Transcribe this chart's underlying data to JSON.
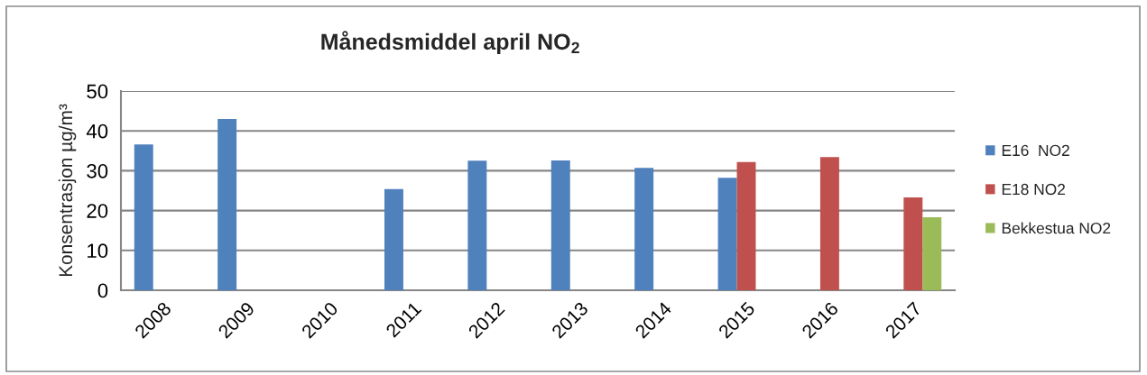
{
  "chart_data": {
    "type": "bar",
    "title": "Månedsmiddel april NO$_{2}$",
    "ylabel": "Konsentrasjon µg/m³",
    "categories": [
      "2008",
      "2009",
      "2010",
      "2011",
      "2012",
      "2013",
      "2014",
      "2015",
      "2016",
      "2017"
    ],
    "series": [
      {
        "name": "E16  NO2",
        "color": "#4f81bd",
        "values": [
          36.6,
          43.0,
          null,
          25.4,
          32.5,
          32.6,
          30.7,
          28.2,
          null,
          null
        ]
      },
      {
        "name": "E18 NO2",
        "color": "#c0504d",
        "values": [
          null,
          null,
          null,
          null,
          null,
          null,
          null,
          32.2,
          33.4,
          23.3
        ]
      },
      {
        "name": "Bekkestua NO2",
        "color": "#9bbb59",
        "values": [
          null,
          null,
          null,
          null,
          null,
          null,
          null,
          null,
          null,
          18.3
        ]
      }
    ],
    "ylim": [
      0,
      50
    ],
    "yticks": [
      0,
      10,
      20,
      30,
      40,
      50
    ],
    "grid": "y",
    "legend": "right"
  }
}
